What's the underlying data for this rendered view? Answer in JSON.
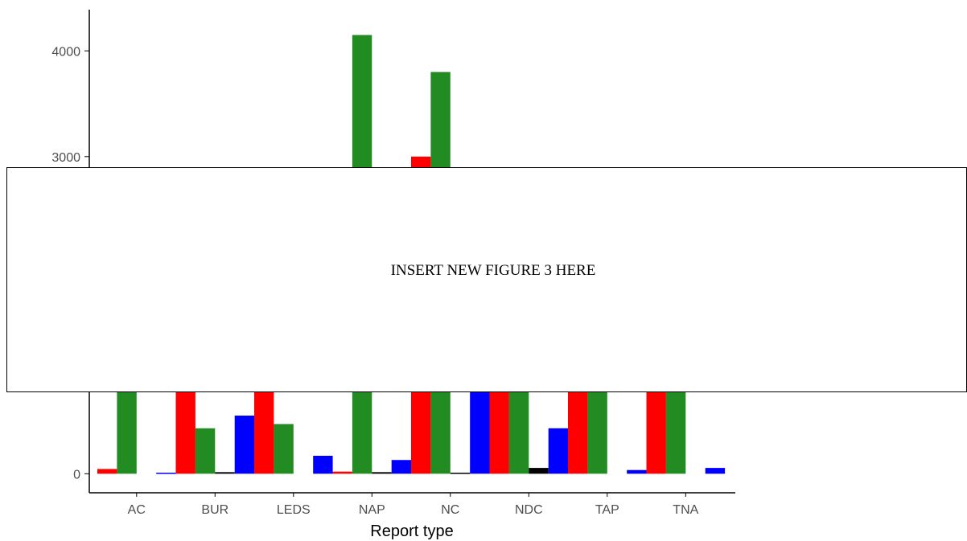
{
  "chart_data": {
    "type": "bar",
    "title": "",
    "xlabel": "Report type",
    "ylabel": "",
    "categories": [
      "AC",
      "BUR",
      "LEDS",
      "NAP",
      "NC",
      "NDC",
      "TAP",
      "TNA"
    ],
    "yticks": [
      "0",
      "3000",
      "4000"
    ],
    "ylim": [
      -180,
      4390
    ],
    "grid": false,
    "legend": "none",
    "series": [
      {
        "color": "#ff0000",
        "values": [
          45,
          1200,
          1200,
          20,
          3000,
          1200,
          1200,
          1200
        ]
      },
      {
        "color": "#228b22",
        "values": [
          1200,
          430,
          470,
          4150,
          3800,
          1200,
          1200,
          1200
        ]
      },
      {
        "color": "#000000",
        "values": [
          0,
          15,
          0,
          15,
          10,
          55,
          0,
          0
        ]
      },
      {
        "color": "#0000ff",
        "values": [
          10,
          550,
          170,
          130,
          1200,
          430,
          35,
          55
        ]
      }
    ]
  },
  "overlay": {
    "text": "INSERT NEW FIGURE 3 HERE"
  }
}
